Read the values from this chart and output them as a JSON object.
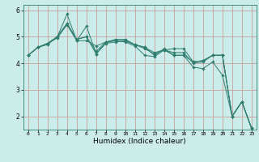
{
  "title": "",
  "xlabel": "Humidex (Indice chaleur)",
  "background_color": "#ccecea",
  "line_color": "#2e7d6e",
  "grid_color_h": "#c8a0a0",
  "grid_color_v": "#c8a0a0",
  "x_values": [
    0,
    1,
    2,
    3,
    4,
    5,
    6,
    7,
    8,
    9,
    10,
    11,
    12,
    13,
    14,
    15,
    16,
    17,
    18,
    19,
    20,
    21,
    22,
    23
  ],
  "series": [
    [
      4.3,
      4.6,
      4.7,
      5.0,
      5.5,
      4.9,
      5.0,
      4.35,
      4.75,
      4.8,
      4.85,
      4.7,
      4.6,
      4.3,
      4.55,
      4.3,
      4.3,
      3.85,
      3.8,
      4.05,
      3.55,
      2.0,
      2.55,
      1.55
    ],
    [
      4.3,
      4.6,
      4.75,
      5.0,
      5.85,
      4.85,
      5.4,
      4.35,
      4.8,
      4.85,
      4.8,
      4.65,
      4.3,
      4.25,
      4.5,
      4.55,
      4.55,
      4.05,
      4.1,
      4.3,
      4.3,
      2.0,
      2.55,
      1.55
    ],
    [
      4.3,
      4.6,
      4.75,
      4.95,
      5.45,
      4.85,
      4.85,
      4.65,
      4.8,
      4.9,
      4.9,
      4.7,
      4.6,
      4.4,
      4.5,
      4.3,
      4.3,
      4.05,
      4.1,
      4.3,
      4.3,
      2.0,
      2.55,
      1.55
    ],
    [
      4.3,
      4.6,
      4.75,
      5.0,
      5.5,
      4.9,
      5.0,
      4.45,
      4.8,
      4.85,
      4.85,
      4.7,
      4.55,
      4.35,
      4.5,
      4.4,
      4.4,
      4.0,
      4.05,
      4.3,
      4.3,
      2.0,
      2.55,
      1.55
    ]
  ],
  "ylim": [
    1.5,
    6.2
  ],
  "xlim": [
    -0.5,
    23.5
  ],
  "yticks": [
    2,
    3,
    4,
    5,
    6
  ],
  "xticks": [
    0,
    1,
    2,
    3,
    4,
    5,
    6,
    7,
    8,
    9,
    10,
    11,
    12,
    13,
    14,
    15,
    16,
    17,
    18,
    19,
    20,
    21,
    22,
    23
  ],
  "xlabel_fontsize": 6.5,
  "xtick_fontsize": 4.5,
  "ytick_fontsize": 5.5
}
